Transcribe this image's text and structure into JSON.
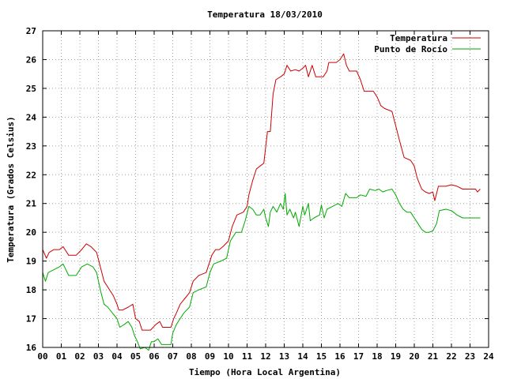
{
  "chart_data": {
    "type": "line",
    "title": "Temperatura 18/03/2010",
    "xlabel": "Tiempo (Hora Local Argentina)",
    "ylabel": "Temperatura (Grados Celsius)",
    "xlim": [
      0,
      24
    ],
    "ylim": [
      16,
      27
    ],
    "x_ticks": [
      "00",
      "01",
      "02",
      "03",
      "04",
      "05",
      "06",
      "07",
      "08",
      "09",
      "10",
      "11",
      "12",
      "13",
      "14",
      "15",
      "16",
      "17",
      "18",
      "19",
      "20",
      "21",
      "22",
      "23",
      "24"
    ],
    "y_ticks": [
      "16",
      "17",
      "18",
      "19",
      "20",
      "21",
      "22",
      "23",
      "24",
      "25",
      "26",
      "27"
    ],
    "grid": true,
    "legend_position": "top-right",
    "series": [
      {
        "name": "Temperatura",
        "color": "#cc0000",
        "points": [
          [
            0.0,
            19.4
          ],
          [
            0.2,
            19.1
          ],
          [
            0.35,
            19.3
          ],
          [
            0.6,
            19.4
          ],
          [
            0.9,
            19.4
          ],
          [
            1.1,
            19.5
          ],
          [
            1.4,
            19.2
          ],
          [
            1.8,
            19.2
          ],
          [
            2.1,
            19.4
          ],
          [
            2.35,
            19.6
          ],
          [
            2.6,
            19.5
          ],
          [
            2.9,
            19.3
          ],
          [
            3.1,
            18.8
          ],
          [
            3.3,
            18.3
          ],
          [
            3.6,
            18.0
          ],
          [
            3.8,
            17.8
          ],
          [
            4.0,
            17.5
          ],
          [
            4.1,
            17.3
          ],
          [
            4.3,
            17.3
          ],
          [
            4.6,
            17.4
          ],
          [
            4.85,
            17.5
          ],
          [
            5.0,
            17.0
          ],
          [
            5.2,
            16.9
          ],
          [
            5.35,
            16.6
          ],
          [
            5.8,
            16.6
          ],
          [
            6.1,
            16.8
          ],
          [
            6.3,
            16.9
          ],
          [
            6.45,
            16.7
          ],
          [
            6.9,
            16.7
          ],
          [
            7.05,
            17.0
          ],
          [
            7.2,
            17.2
          ],
          [
            7.4,
            17.5
          ],
          [
            7.65,
            17.7
          ],
          [
            7.9,
            17.9
          ],
          [
            8.1,
            18.3
          ],
          [
            8.4,
            18.5
          ],
          [
            8.8,
            18.6
          ],
          [
            9.1,
            19.2
          ],
          [
            9.3,
            19.4
          ],
          [
            9.5,
            19.4
          ],
          [
            9.7,
            19.5
          ],
          [
            10.0,
            19.7
          ],
          [
            10.2,
            20.2
          ],
          [
            10.45,
            20.6
          ],
          [
            10.8,
            20.7
          ],
          [
            11.0,
            20.9
          ],
          [
            11.1,
            21.3
          ],
          [
            11.3,
            21.8
          ],
          [
            11.5,
            22.2
          ],
          [
            11.7,
            22.3
          ],
          [
            11.9,
            22.4
          ],
          [
            12.1,
            23.5
          ],
          [
            12.25,
            23.5
          ],
          [
            12.4,
            24.8
          ],
          [
            12.55,
            25.3
          ],
          [
            12.8,
            25.4
          ],
          [
            13.0,
            25.5
          ],
          [
            13.15,
            25.8
          ],
          [
            13.35,
            25.6
          ],
          [
            13.6,
            25.65
          ],
          [
            13.8,
            25.6
          ],
          [
            14.0,
            25.7
          ],
          [
            14.15,
            25.8
          ],
          [
            14.3,
            25.4
          ],
          [
            14.5,
            25.8
          ],
          [
            14.7,
            25.4
          ],
          [
            15.1,
            25.4
          ],
          [
            15.3,
            25.6
          ],
          [
            15.4,
            25.9
          ],
          [
            15.8,
            25.9
          ],
          [
            16.0,
            26.0
          ],
          [
            16.2,
            26.2
          ],
          [
            16.35,
            25.8
          ],
          [
            16.5,
            25.6
          ],
          [
            16.9,
            25.6
          ],
          [
            17.1,
            25.3
          ],
          [
            17.3,
            24.9
          ],
          [
            17.8,
            24.9
          ],
          [
            18.0,
            24.7
          ],
          [
            18.2,
            24.4
          ],
          [
            18.4,
            24.3
          ],
          [
            18.8,
            24.2
          ],
          [
            19.0,
            23.7
          ],
          [
            19.2,
            23.2
          ],
          [
            19.45,
            22.6
          ],
          [
            19.8,
            22.5
          ],
          [
            20.0,
            22.3
          ],
          [
            20.15,
            21.9
          ],
          [
            20.4,
            21.5
          ],
          [
            20.6,
            21.4
          ],
          [
            20.8,
            21.35
          ],
          [
            21.0,
            21.4
          ],
          [
            21.1,
            21.1
          ],
          [
            21.3,
            21.6
          ],
          [
            21.7,
            21.6
          ],
          [
            22.0,
            21.65
          ],
          [
            22.3,
            21.6
          ],
          [
            22.6,
            21.5
          ],
          [
            22.9,
            21.5
          ],
          [
            23.3,
            21.5
          ],
          [
            23.4,
            21.4
          ],
          [
            23.55,
            21.5
          ]
        ]
      },
      {
        "name": "Punto de Rocío",
        "color": "#00aa00",
        "points": [
          [
            0.0,
            18.6
          ],
          [
            0.15,
            18.3
          ],
          [
            0.3,
            18.6
          ],
          [
            0.6,
            18.7
          ],
          [
            0.9,
            18.8
          ],
          [
            1.1,
            18.9
          ],
          [
            1.4,
            18.5
          ],
          [
            1.8,
            18.5
          ],
          [
            2.1,
            18.8
          ],
          [
            2.4,
            18.9
          ],
          [
            2.7,
            18.8
          ],
          [
            2.9,
            18.6
          ],
          [
            3.1,
            18.0
          ],
          [
            3.3,
            17.5
          ],
          [
            3.5,
            17.4
          ],
          [
            3.75,
            17.2
          ],
          [
            4.0,
            17.0
          ],
          [
            4.15,
            16.7
          ],
          [
            4.4,
            16.8
          ],
          [
            4.6,
            16.9
          ],
          [
            4.8,
            16.7
          ],
          [
            4.95,
            16.4
          ],
          [
            5.1,
            16.2
          ],
          [
            5.25,
            15.95
          ],
          [
            5.5,
            16.0
          ],
          [
            5.7,
            15.9
          ],
          [
            5.85,
            16.2
          ],
          [
            6.0,
            16.2
          ],
          [
            6.2,
            16.3
          ],
          [
            6.4,
            16.1
          ],
          [
            6.9,
            16.1
          ],
          [
            7.0,
            16.5
          ],
          [
            7.2,
            16.8
          ],
          [
            7.4,
            17.0
          ],
          [
            7.6,
            17.2
          ],
          [
            7.9,
            17.4
          ],
          [
            8.1,
            17.9
          ],
          [
            8.4,
            18.0
          ],
          [
            8.8,
            18.1
          ],
          [
            9.0,
            18.6
          ],
          [
            9.2,
            18.9
          ],
          [
            9.6,
            19.0
          ],
          [
            9.9,
            19.1
          ],
          [
            10.1,
            19.7
          ],
          [
            10.4,
            20.0
          ],
          [
            10.7,
            20.0
          ],
          [
            10.9,
            20.4
          ],
          [
            11.1,
            20.9
          ],
          [
            11.3,
            20.8
          ],
          [
            11.5,
            20.6
          ],
          [
            11.7,
            20.6
          ],
          [
            11.9,
            20.8
          ],
          [
            12.0,
            20.5
          ],
          [
            12.15,
            20.2
          ],
          [
            12.25,
            20.7
          ],
          [
            12.4,
            20.9
          ],
          [
            12.6,
            20.7
          ],
          [
            12.8,
            21.0
          ],
          [
            12.95,
            20.8
          ],
          [
            13.05,
            21.35
          ],
          [
            13.15,
            20.6
          ],
          [
            13.3,
            20.8
          ],
          [
            13.5,
            20.5
          ],
          [
            13.6,
            20.7
          ],
          [
            13.8,
            20.2
          ],
          [
            14.0,
            20.9
          ],
          [
            14.1,
            20.6
          ],
          [
            14.3,
            21.0
          ],
          [
            14.4,
            20.4
          ],
          [
            14.6,
            20.5
          ],
          [
            14.9,
            20.6
          ],
          [
            15.0,
            20.95
          ],
          [
            15.15,
            20.5
          ],
          [
            15.3,
            20.8
          ],
          [
            15.6,
            20.9
          ],
          [
            15.9,
            21.0
          ],
          [
            16.1,
            20.9
          ],
          [
            16.3,
            21.35
          ],
          [
            16.5,
            21.2
          ],
          [
            16.9,
            21.2
          ],
          [
            17.1,
            21.3
          ],
          [
            17.4,
            21.25
          ],
          [
            17.6,
            21.5
          ],
          [
            17.9,
            21.45
          ],
          [
            18.1,
            21.5
          ],
          [
            18.3,
            21.4
          ],
          [
            18.5,
            21.45
          ],
          [
            18.8,
            21.5
          ],
          [
            19.0,
            21.3
          ],
          [
            19.2,
            21.0
          ],
          [
            19.4,
            20.8
          ],
          [
            19.6,
            20.7
          ],
          [
            19.8,
            20.7
          ],
          [
            20.0,
            20.5
          ],
          [
            20.2,
            20.3
          ],
          [
            20.4,
            20.1
          ],
          [
            20.6,
            20.0
          ],
          [
            20.8,
            20.0
          ],
          [
            21.0,
            20.05
          ],
          [
            21.2,
            20.3
          ],
          [
            21.35,
            20.75
          ],
          [
            21.7,
            20.8
          ],
          [
            22.0,
            20.75
          ],
          [
            22.3,
            20.6
          ],
          [
            22.6,
            20.5
          ],
          [
            22.9,
            20.5
          ],
          [
            23.2,
            20.5
          ],
          [
            23.55,
            20.5
          ]
        ]
      }
    ]
  }
}
